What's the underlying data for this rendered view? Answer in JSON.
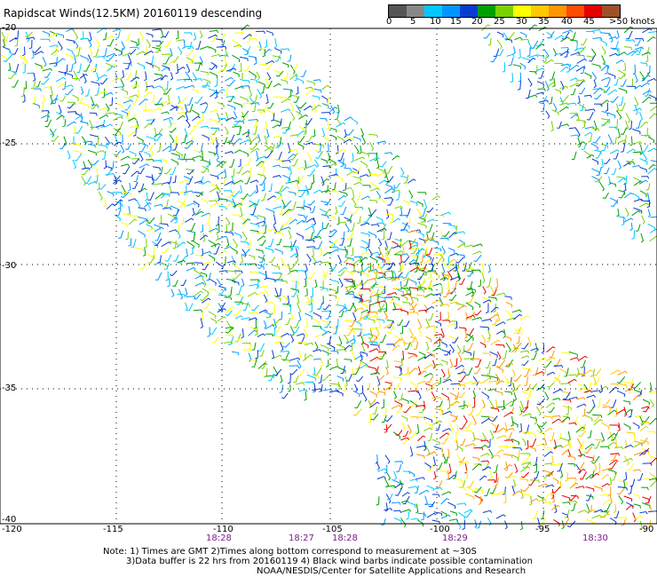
{
  "title": "Rapidscat Winds(12.5KM) 20160119 descending",
  "legend": {
    "colors": [
      "#555555",
      "#888888",
      "#00c8ff",
      "#0096ff",
      "#0a3cd2",
      "#00a000",
      "#78d200",
      "#ffff00",
      "#ffc800",
      "#ff9600",
      "#ff4b00",
      "#e60000",
      "#a05028",
      "#c8a078",
      "#ff00ff",
      "#c800c8",
      "#9600ff",
      "#000000"
    ],
    "labels": [
      "0",
      "5",
      "10",
      "15",
      "20",
      "25",
      "30",
      "35",
      "40",
      "45",
      ">50 knots"
    ]
  },
  "axes": {
    "lon_ticks": [
      "-120",
      "-115",
      "-110",
      "-105",
      "-100",
      "-95",
      "-90"
    ],
    "lat_ticks": [
      "-20",
      "-25",
      "-30",
      "-35",
      "-40"
    ]
  },
  "times": [
    "18:28",
    "18:27",
    "18:28",
    "18:29",
    "18:30"
  ],
  "notes": {
    "line1": "Note: 1) Times are GMT 2)Times along bottom correspond to measurement at ~30S",
    "line2": "3)Data buffer is 22 hrs from 20160119 4) Black wind barbs indicate possible contamination",
    "line3": "NOAA/NESDIS/Center for Satellite Applications and Research"
  }
}
